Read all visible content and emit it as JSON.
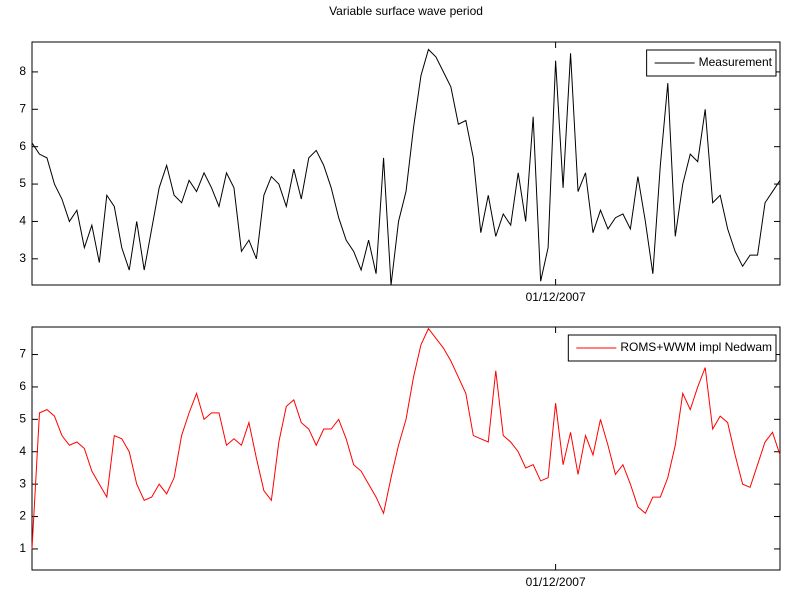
{
  "chart_data": [
    {
      "type": "line",
      "title": "Variable surface wave period",
      "categories": [
        null,
        null,
        null,
        null,
        null,
        null,
        null,
        null,
        null,
        null,
        null,
        null,
        null,
        null,
        null,
        null,
        null,
        null,
        null,
        null,
        null,
        null,
        null,
        null,
        null,
        null,
        null,
        null,
        null,
        null,
        null,
        null,
        null,
        null,
        null,
        null,
        null,
        null,
        null,
        null,
        null,
        null,
        null,
        null,
        null,
        null,
        null,
        null,
        null,
        null,
        null,
        null,
        null,
        null,
        null,
        null,
        null,
        null,
        null,
        null,
        null,
        null,
        null,
        null,
        null,
        null,
        null,
        null,
        null,
        null,
        "01/12/2007",
        null,
        null,
        null,
        null,
        null,
        null,
        null,
        null,
        null,
        null,
        null,
        null,
        null,
        null,
        null,
        null,
        null,
        null,
        null,
        null,
        null,
        null,
        null,
        null,
        null,
        null,
        null,
        null,
        null,
        null
      ],
      "series": [
        {
          "name": "Measurement",
          "color": "#000000",
          "values": [
            6.1,
            5.8,
            5.7,
            5.0,
            4.6,
            4.0,
            4.3,
            3.3,
            3.9,
            2.9,
            4.7,
            4.4,
            3.3,
            2.7,
            4.0,
            2.7,
            3.8,
            4.9,
            5.5,
            4.7,
            4.5,
            5.1,
            4.8,
            5.3,
            4.9,
            4.4,
            5.3,
            4.9,
            3.2,
            3.5,
            3.0,
            4.7,
            5.2,
            5.0,
            4.4,
            5.4,
            4.6,
            5.7,
            5.9,
            5.5,
            4.9,
            4.1,
            3.5,
            3.2,
            2.7,
            3.5,
            2.6,
            5.7,
            2.3,
            4.0,
            4.8,
            6.5,
            7.9,
            8.6,
            8.4,
            8.0,
            7.6,
            6.6,
            6.7,
            5.7,
            3.7,
            4.7,
            3.6,
            4.2,
            3.9,
            5.3,
            4.0,
            6.8,
            2.4,
            3.3,
            8.3,
            4.9,
            8.5,
            4.8,
            5.3,
            3.7,
            4.3,
            3.8,
            4.1,
            4.2,
            3.8,
            5.2,
            4.0,
            2.6,
            5.5,
            7.7,
            3.6,
            5.0,
            5.8,
            5.6,
            7.0,
            4.5,
            4.7,
            3.8,
            3.2,
            2.8,
            3.1,
            3.1,
            4.5,
            4.8,
            5.1
          ]
        }
      ],
      "ylim": [
        2.3,
        8.8
      ],
      "yticks": [
        3,
        4,
        5,
        6,
        7,
        8
      ],
      "legend": "upper right"
    },
    {
      "type": "line",
      "categories": [
        null,
        null,
        null,
        null,
        null,
        null,
        null,
        null,
        null,
        null,
        null,
        null,
        null,
        null,
        null,
        null,
        null,
        null,
        null,
        null,
        null,
        null,
        null,
        null,
        null,
        null,
        null,
        null,
        null,
        null,
        null,
        null,
        null,
        null,
        null,
        null,
        null,
        null,
        null,
        null,
        null,
        null,
        null,
        null,
        null,
        null,
        null,
        null,
        null,
        null,
        null,
        null,
        null,
        null,
        null,
        null,
        null,
        null,
        null,
        null,
        null,
        null,
        null,
        null,
        null,
        null,
        null,
        null,
        null,
        null,
        "01/12/2007",
        null,
        null,
        null,
        null,
        null,
        null,
        null,
        null,
        null,
        null,
        null,
        null,
        null,
        null,
        null,
        null,
        null,
        null,
        null,
        null,
        null,
        null,
        null,
        null,
        null,
        null,
        null,
        null,
        null,
        null
      ],
      "series": [
        {
          "name": "ROMS+WWM impl Nedwam",
          "color": "#ff0000",
          "values": [
            1.0,
            5.2,
            5.3,
            5.1,
            4.5,
            4.2,
            4.3,
            4.1,
            3.4,
            3.0,
            2.6,
            4.5,
            4.4,
            4.0,
            3.0,
            2.5,
            2.6,
            3.0,
            2.7,
            3.2,
            4.5,
            5.2,
            5.8,
            5.0,
            5.2,
            5.2,
            4.2,
            4.4,
            4.2,
            4.9,
            3.8,
            2.8,
            2.5,
            4.3,
            5.4,
            5.6,
            4.9,
            4.7,
            4.2,
            4.7,
            4.7,
            5.0,
            4.4,
            3.6,
            3.4,
            3.0,
            2.6,
            2.1,
            3.2,
            4.2,
            5.0,
            6.3,
            7.3,
            7.8,
            7.5,
            7.2,
            6.8,
            6.3,
            5.8,
            4.5,
            4.4,
            4.3,
            6.5,
            4.5,
            4.3,
            4.0,
            3.5,
            3.6,
            3.1,
            3.2,
            5.5,
            3.6,
            4.6,
            3.3,
            4.5,
            3.9,
            5.0,
            4.2,
            3.3,
            3.6,
            3.0,
            2.3,
            2.1,
            2.6,
            2.6,
            3.2,
            4.2,
            5.8,
            5.3,
            6.0,
            6.6,
            4.7,
            5.1,
            4.9,
            3.9,
            3.0,
            2.9,
            3.6,
            4.3,
            4.6,
            3.9
          ]
        }
      ],
      "ylim": [
        0.35,
        7.85
      ],
      "yticks": [
        1,
        2,
        3,
        4,
        5,
        6,
        7
      ],
      "legend": "upper right"
    }
  ]
}
